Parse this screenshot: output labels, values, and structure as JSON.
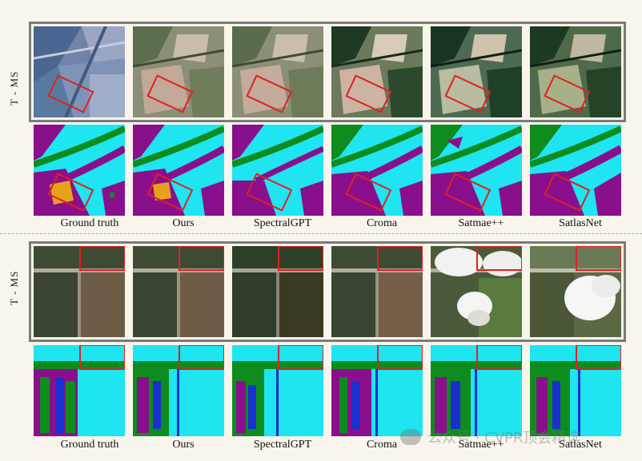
{
  "row_label": "T - MS",
  "methods": [
    "Ground truth",
    "Ours",
    "SpectralGPT",
    "Croma",
    "Satmae++",
    "SatlasNet"
  ],
  "watermark_text": "公众号 · CVPR顶会精选",
  "colors": {
    "cyan_class": "#1ee5f0",
    "purple_class": "#8a0f8c",
    "green_class": "#0f8c1e",
    "orange_class": "#e8a21a",
    "blue_class": "#1a2fd0",
    "highlight_box": "#e02020",
    "frame_border": "#7a7a7a"
  }
}
